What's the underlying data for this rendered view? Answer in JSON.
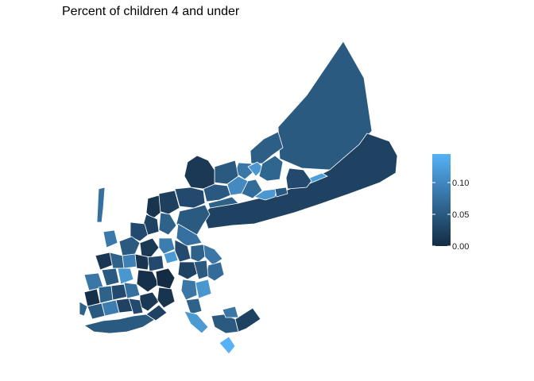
{
  "title": "Percent of children 4 and under",
  "legend": {
    "ticks": [
      {
        "value": 0.0,
        "label": "0.00"
      },
      {
        "value": 0.05,
        "label": "0.05"
      },
      {
        "value": 0.1,
        "label": "0.10"
      }
    ],
    "min": 0.0,
    "max": 0.145,
    "low_color": "#132b43",
    "high_color": "#56b1f7"
  }
}
